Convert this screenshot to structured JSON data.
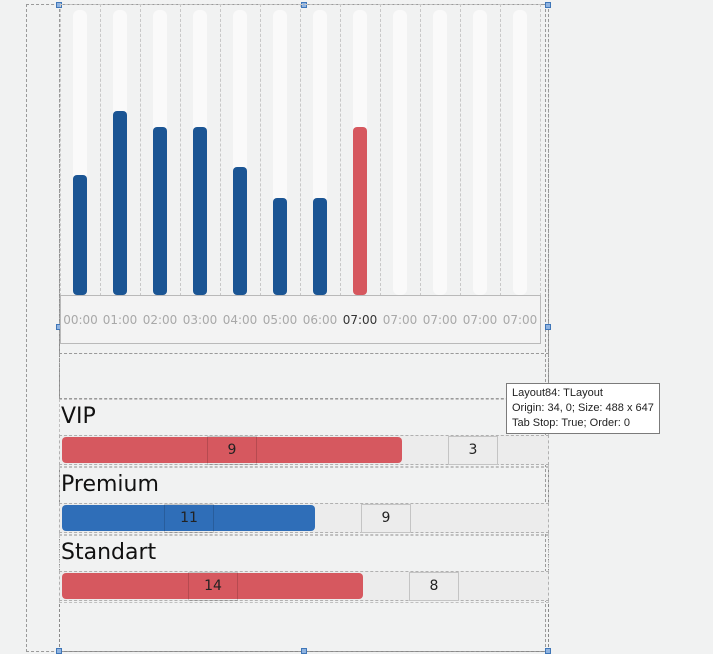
{
  "chart_data": {
    "type": "bar",
    "categories": [
      "00:00",
      "01:00",
      "02:00",
      "03:00",
      "04:00",
      "05:00",
      "06:00",
      "07:00",
      "07:00",
      "07:00",
      "07:00",
      "07:00"
    ],
    "values": [
      7.6,
      11.6,
      10.6,
      10.6,
      8.1,
      6.1,
      6.1,
      10.6,
      0,
      0,
      0,
      0
    ],
    "ylim": [
      0,
      18
    ],
    "highlight_index": 7,
    "colors": {
      "normal": "#1b5594",
      "highlight": "#d6585f",
      "track": "#fafafa"
    }
  },
  "categories_panel": {
    "items": [
      {
        "name": "VIP",
        "inside_value": "9",
        "outside_value": "3",
        "fraction": 0.7,
        "color": "#d6585f"
      },
      {
        "name": "Premium",
        "inside_value": "11",
        "outside_value": "9",
        "fraction": 0.52,
        "color": "#2f6eb8"
      },
      {
        "name": "Standart",
        "inside_value": "14",
        "outside_value": "8",
        "fraction": 0.62,
        "color": "#d6585f"
      }
    ]
  },
  "tooltip": {
    "line1": "Layout84: TLayout",
    "line2": "Origin: 34, 0; Size: 488 x 647",
    "line3": "Tab Stop: True; Order: 0"
  }
}
